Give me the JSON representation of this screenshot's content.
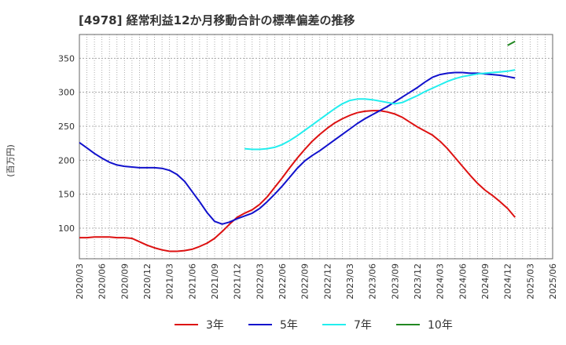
{
  "chart_data": {
    "type": "line",
    "title": "[4978]  経常利益12か月移動合計の標準偏差の推移",
    "ylabel": "(百万円)",
    "xlabel": "",
    "ylim": [
      55,
      385
    ],
    "yticks": [
      100,
      150,
      200,
      250,
      300,
      350
    ],
    "xlim": [
      "2020-03",
      "2025-06"
    ],
    "xticks": [
      "2020/03",
      "2020/06",
      "2020/09",
      "2020/12",
      "2021/03",
      "2021/06",
      "2021/09",
      "2021/12",
      "2022/03",
      "2022/06",
      "2022/09",
      "2022/12",
      "2023/03",
      "2023/06",
      "2023/09",
      "2023/12",
      "2024/03",
      "2024/06",
      "2024/09",
      "2024/12",
      "2025/03",
      "2025/06"
    ],
    "grid": true,
    "legend_position": "bottom",
    "series": [
      {
        "name": "3年",
        "color": "#dd1111",
        "points": [
          [
            "2020-03",
            86
          ],
          [
            "2020-04",
            86
          ],
          [
            "2020-05",
            87
          ],
          [
            "2020-06",
            87
          ],
          [
            "2020-07",
            87
          ],
          [
            "2020-08",
            86
          ],
          [
            "2020-09",
            86
          ],
          [
            "2020-10",
            85
          ],
          [
            "2020-11",
            80
          ],
          [
            "2020-12",
            75
          ],
          [
            "2021-01",
            71
          ],
          [
            "2021-02",
            68
          ],
          [
            "2021-03",
            66
          ],
          [
            "2021-04",
            66
          ],
          [
            "2021-05",
            67
          ],
          [
            "2021-06",
            69
          ],
          [
            "2021-07",
            73
          ],
          [
            "2021-08",
            78
          ],
          [
            "2021-09",
            85
          ],
          [
            "2021-10",
            95
          ],
          [
            "2021-11",
            106
          ],
          [
            "2021-12",
            116
          ],
          [
            "2022-01",
            122
          ],
          [
            "2022-02",
            127
          ],
          [
            "2022-03",
            135
          ],
          [
            "2022-04",
            146
          ],
          [
            "2022-05",
            160
          ],
          [
            "2022-06",
            174
          ],
          [
            "2022-07",
            189
          ],
          [
            "2022-08",
            203
          ],
          [
            "2022-09",
            216
          ],
          [
            "2022-10",
            228
          ],
          [
            "2022-11",
            238
          ],
          [
            "2022-12",
            247
          ],
          [
            "2023-01",
            255
          ],
          [
            "2023-02",
            261
          ],
          [
            "2023-03",
            266
          ],
          [
            "2023-04",
            270
          ],
          [
            "2023-05",
            272
          ],
          [
            "2023-06",
            273
          ],
          [
            "2023-07",
            273
          ],
          [
            "2023-08",
            271
          ],
          [
            "2023-09",
            268
          ],
          [
            "2023-10",
            263
          ],
          [
            "2023-11",
            256
          ],
          [
            "2023-12",
            249
          ],
          [
            "2024-01",
            243
          ],
          [
            "2024-02",
            237
          ],
          [
            "2024-03",
            228
          ],
          [
            "2024-04",
            217
          ],
          [
            "2024-05",
            204
          ],
          [
            "2024-06",
            191
          ],
          [
            "2024-07",
            178
          ],
          [
            "2024-08",
            166
          ],
          [
            "2024-09",
            156
          ],
          [
            "2024-10",
            148
          ],
          [
            "2024-11",
            139
          ],
          [
            "2024-12",
            129
          ],
          [
            "2025-01",
            116
          ]
        ]
      },
      {
        "name": "5年",
        "color": "#1111cc",
        "points": [
          [
            "2020-03",
            226
          ],
          [
            "2020-04",
            218
          ],
          [
            "2020-05",
            210
          ],
          [
            "2020-06",
            203
          ],
          [
            "2020-07",
            197
          ],
          [
            "2020-08",
            193
          ],
          [
            "2020-09",
            191
          ],
          [
            "2020-10",
            190
          ],
          [
            "2020-11",
            189
          ],
          [
            "2020-12",
            189
          ],
          [
            "2021-01",
            189
          ],
          [
            "2021-02",
            188
          ],
          [
            "2021-03",
            185
          ],
          [
            "2021-04",
            179
          ],
          [
            "2021-05",
            169
          ],
          [
            "2021-06",
            154
          ],
          [
            "2021-07",
            139
          ],
          [
            "2021-08",
            123
          ],
          [
            "2021-09",
            110
          ],
          [
            "2021-10",
            106
          ],
          [
            "2021-11",
            109
          ],
          [
            "2021-12",
            114
          ],
          [
            "2022-01",
            118
          ],
          [
            "2022-02",
            122
          ],
          [
            "2022-03",
            129
          ],
          [
            "2022-04",
            139
          ],
          [
            "2022-05",
            150
          ],
          [
            "2022-06",
            162
          ],
          [
            "2022-07",
            175
          ],
          [
            "2022-08",
            188
          ],
          [
            "2022-09",
            199
          ],
          [
            "2022-10",
            207
          ],
          [
            "2022-11",
            214
          ],
          [
            "2022-12",
            222
          ],
          [
            "2023-01",
            230
          ],
          [
            "2023-02",
            238
          ],
          [
            "2023-03",
            246
          ],
          [
            "2023-04",
            254
          ],
          [
            "2023-05",
            261
          ],
          [
            "2023-06",
            267
          ],
          [
            "2023-07",
            273
          ],
          [
            "2023-08",
            279
          ],
          [
            "2023-09",
            286
          ],
          [
            "2023-10",
            293
          ],
          [
            "2023-11",
            300
          ],
          [
            "2023-12",
            307
          ],
          [
            "2024-01",
            315
          ],
          [
            "2024-02",
            322
          ],
          [
            "2024-03",
            326
          ],
          [
            "2024-04",
            328
          ],
          [
            "2024-05",
            329
          ],
          [
            "2024-06",
            329
          ],
          [
            "2024-07",
            328
          ],
          [
            "2024-08",
            328
          ],
          [
            "2024-09",
            327
          ],
          [
            "2024-10",
            326
          ],
          [
            "2024-11",
            325
          ],
          [
            "2024-12",
            323
          ],
          [
            "2025-01",
            321
          ]
        ]
      },
      {
        "name": "7年",
        "color": "#22eeee",
        "points": [
          [
            "2022-01",
            217
          ],
          [
            "2022-02",
            216
          ],
          [
            "2022-03",
            216
          ],
          [
            "2022-04",
            217
          ],
          [
            "2022-05",
            219
          ],
          [
            "2022-06",
            223
          ],
          [
            "2022-07",
            229
          ],
          [
            "2022-08",
            236
          ],
          [
            "2022-09",
            244
          ],
          [
            "2022-10",
            252
          ],
          [
            "2022-11",
            260
          ],
          [
            "2022-12",
            268
          ],
          [
            "2023-01",
            276
          ],
          [
            "2023-02",
            283
          ],
          [
            "2023-03",
            288
          ],
          [
            "2023-04",
            290
          ],
          [
            "2023-05",
            290
          ],
          [
            "2023-06",
            289
          ],
          [
            "2023-07",
            287
          ],
          [
            "2023-08",
            285
          ],
          [
            "2023-09",
            283
          ],
          [
            "2023-10",
            285
          ],
          [
            "2023-11",
            290
          ],
          [
            "2023-12",
            295
          ],
          [
            "2024-01",
            301
          ],
          [
            "2024-02",
            306
          ],
          [
            "2024-03",
            311
          ],
          [
            "2024-04",
            316
          ],
          [
            "2024-05",
            320
          ],
          [
            "2024-06",
            323
          ],
          [
            "2024-07",
            325
          ],
          [
            "2024-08",
            327
          ],
          [
            "2024-09",
            328
          ],
          [
            "2024-10",
            329
          ],
          [
            "2024-11",
            330
          ],
          [
            "2024-12",
            331
          ],
          [
            "2025-01",
            333
          ]
        ]
      },
      {
        "name": "10年",
        "color": "#228822",
        "points": [
          [
            "2024-12",
            369
          ],
          [
            "2025-01",
            375
          ]
        ]
      }
    ]
  }
}
